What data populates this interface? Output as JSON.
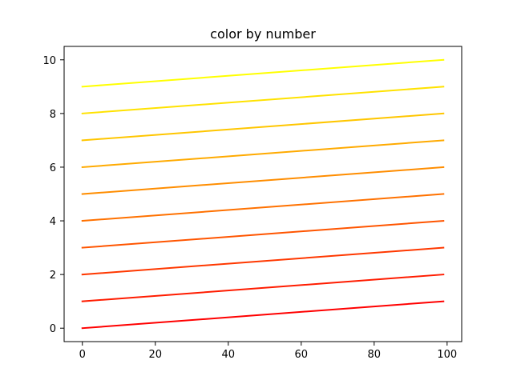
{
  "chart_data": {
    "type": "line",
    "title": "color by number",
    "xlabel": "",
    "ylabel": "",
    "xlim": [
      -5,
      104
    ],
    "ylim": [
      -0.5,
      10.5
    ],
    "xticks": [
      0,
      20,
      40,
      60,
      80,
      100
    ],
    "yticks": [
      0,
      2,
      4,
      6,
      8,
      10
    ],
    "grid": false,
    "legend": "none",
    "series": [
      {
        "x": [
          0,
          99
        ],
        "y": [
          0,
          1
        ],
        "color": "#ff0000"
      },
      {
        "x": [
          0,
          99
        ],
        "y": [
          1,
          2
        ],
        "color": "#ff1c00"
      },
      {
        "x": [
          0,
          99
        ],
        "y": [
          2,
          3
        ],
        "color": "#ff3800"
      },
      {
        "x": [
          0,
          99
        ],
        "y": [
          3,
          4
        ],
        "color": "#ff5500"
      },
      {
        "x": [
          0,
          99
        ],
        "y": [
          4,
          5
        ],
        "color": "#ff7100"
      },
      {
        "x": [
          0,
          99
        ],
        "y": [
          5,
          6
        ],
        "color": "#ff8d00"
      },
      {
        "x": [
          0,
          99
        ],
        "y": [
          6,
          7
        ],
        "color": "#ffaa00"
      },
      {
        "x": [
          0,
          99
        ],
        "y": [
          7,
          8
        ],
        "color": "#ffc600"
      },
      {
        "x": [
          0,
          99
        ],
        "y": [
          8,
          9
        ],
        "color": "#ffe200"
      },
      {
        "x": [
          0,
          99
        ],
        "y": [
          9,
          10
        ],
        "color": "#ffff00"
      }
    ]
  }
}
